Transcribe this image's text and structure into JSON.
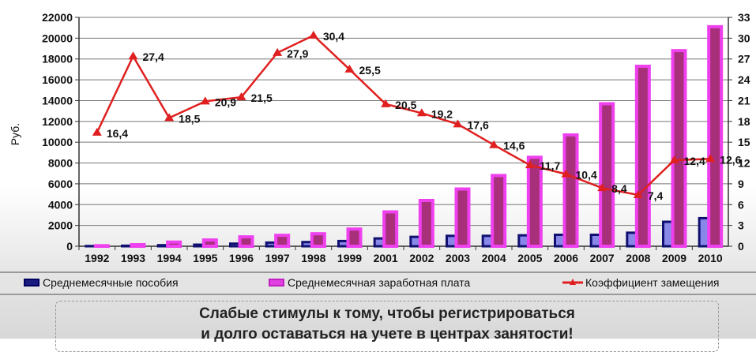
{
  "chart_data": {
    "type": "bar",
    "categories": [
      "1992",
      "1993",
      "1994",
      "1995",
      "1996",
      "1997",
      "1998",
      "1999",
      "2001",
      "2002",
      "2003",
      "2004",
      "2005",
      "2006",
      "2007",
      "2008",
      "2009",
      "2010"
    ],
    "ylabel": "Руб.",
    "ylim": [
      0,
      22000
    ],
    "yticks": [
      "0",
      "2000",
      "4000",
      "6000",
      "8000",
      "10000",
      "12000",
      "14000",
      "16000",
      "18000",
      "20000",
      "22000"
    ],
    "y2lim": [
      0,
      33
    ],
    "y2ticks": [
      "0",
      "3",
      "6",
      "9",
      "12",
      "15",
      "18",
      "21",
      "24",
      "27",
      "30",
      "33"
    ],
    "grid": true,
    "legend_placement": "bottom",
    "series": [
      {
        "name": "Среднемесячные пособия",
        "type": "bar",
        "axis": "left",
        "color": "#1a1a80",
        "values": [
          20,
          50,
          100,
          150,
          250,
          350,
          400,
          500,
          750,
          900,
          1000,
          1000,
          1050,
          1100,
          1100,
          1300,
          2350,
          2700
        ]
      },
      {
        "name": "Среднемесячная заработная плата",
        "type": "bar",
        "axis": "left",
        "color": "#e040e0",
        "values": [
          50,
          150,
          400,
          600,
          900,
          1050,
          1200,
          1650,
          3300,
          4400,
          5500,
          6800,
          8550,
          10700,
          13700,
          17300,
          18800,
          21100
        ]
      },
      {
        "name": "Коэффициент замещения",
        "type": "line",
        "axis": "right",
        "color": "#e02020",
        "values": [
          16.4,
          27.4,
          18.5,
          20.9,
          21.5,
          27.9,
          30.4,
          25.5,
          20.5,
          19.2,
          17.6,
          14.6,
          11.7,
          10.4,
          8.4,
          7.4,
          12.4,
          12.6
        ],
        "labels": [
          "16,4",
          "27,4",
          "18,5",
          "20,9",
          "21,5",
          "27,9",
          "30,4",
          "25,5",
          "20,5",
          "19,2",
          "17,6",
          "14,6",
          "11,7",
          "10,4",
          "8,4",
          "7,4",
          "12,4",
          "12,6"
        ]
      }
    ]
  },
  "banner": {
    "line1": "Слабые стимулы к тому, чтобы регистрироваться",
    "line2": "и долго оставаться на учете в центрах занятости!"
  }
}
